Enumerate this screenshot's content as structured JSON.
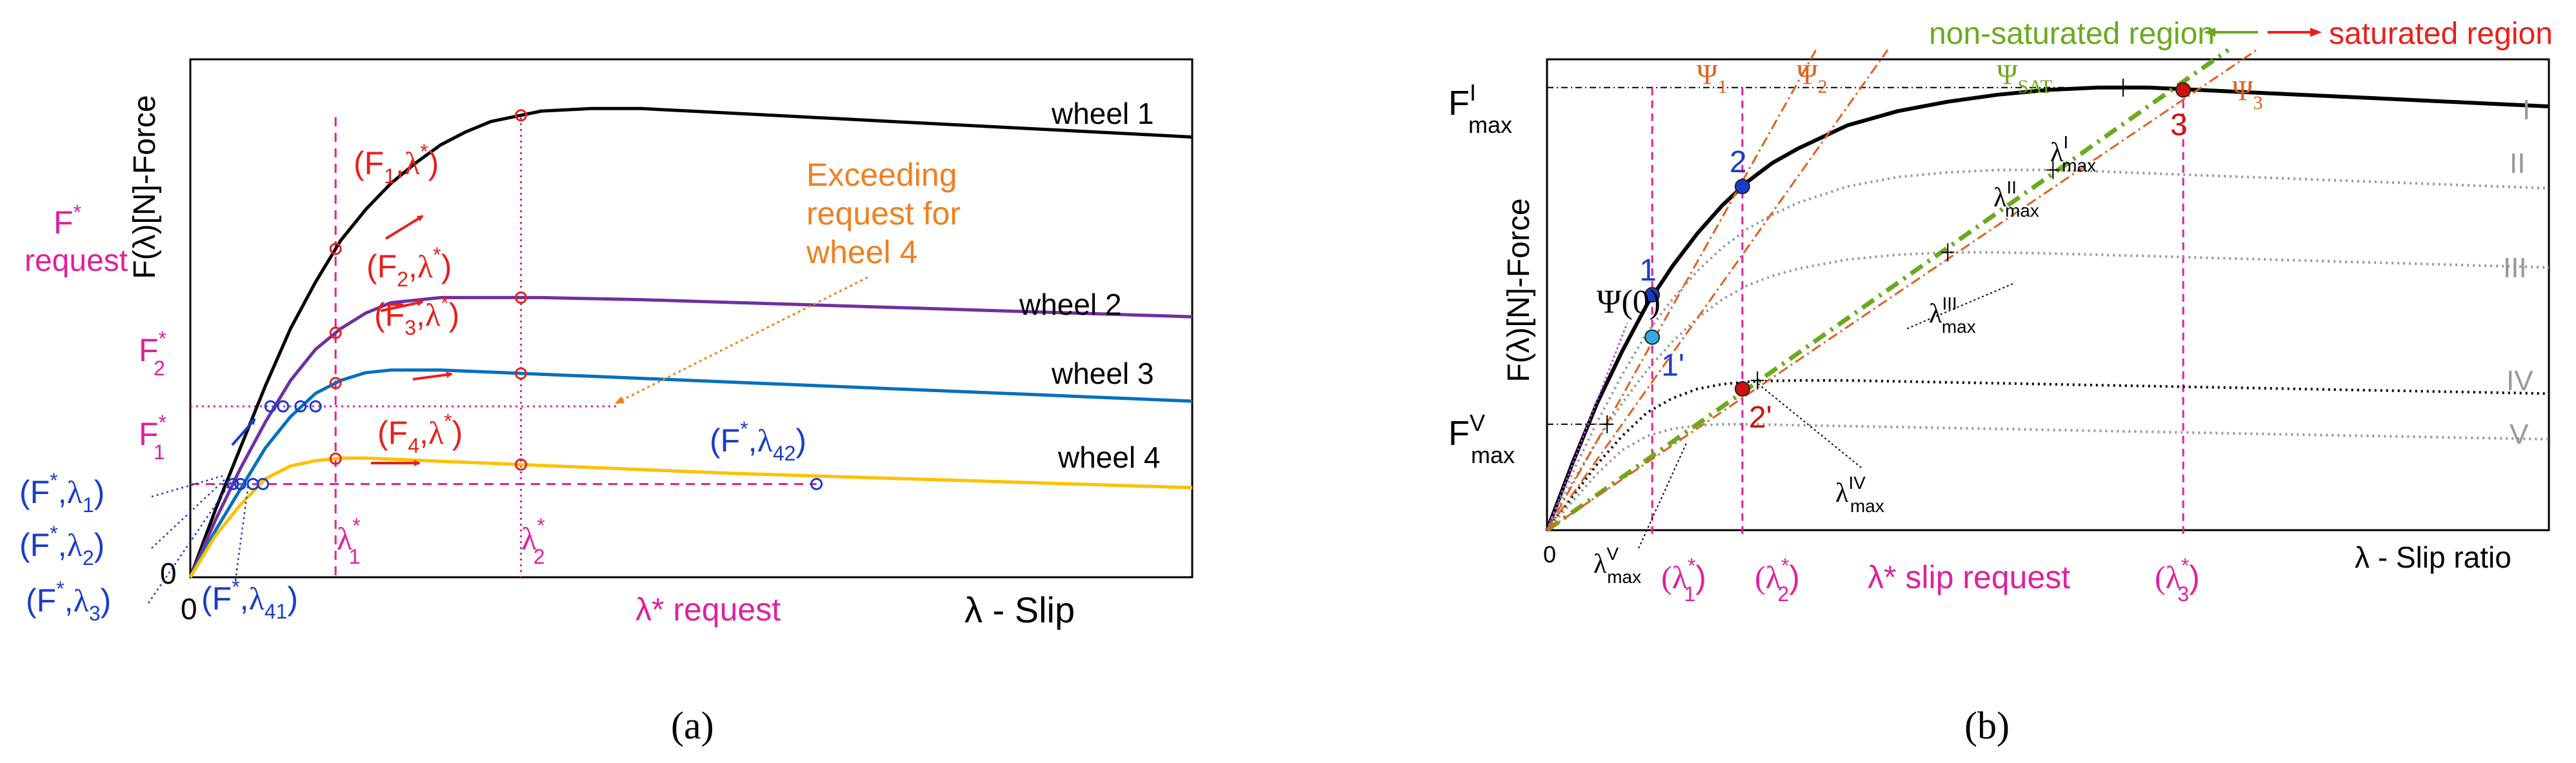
{
  "panel_labels": [
    "(a)",
    "(b)"
  ],
  "chart_data": [
    {
      "type": "line",
      "panel": "(a)",
      "xlabel": "λ - Slip",
      "ylabel": "F(λ)[N]-Force",
      "xlim": [
        0,
        0.2
      ],
      "ylim": [
        0,
        1.0
      ],
      "x": [
        0,
        0.005,
        0.01,
        0.015,
        0.02,
        0.025,
        0.03,
        0.035,
        0.04,
        0.045,
        0.05,
        0.055,
        0.06,
        0.07,
        0.08,
        0.09,
        0.1,
        0.11,
        0.12,
        0.13,
        0.14,
        0.15,
        0.16,
        0.17,
        0.18,
        0.19,
        0.2
      ],
      "series": [
        {
          "name": "wheel 1",
          "color": "#000000",
          "values": [
            0,
            0.13,
            0.25,
            0.37,
            0.48,
            0.57,
            0.65,
            0.71,
            0.76,
            0.8,
            0.835,
            0.86,
            0.88,
            0.9,
            0.905,
            0.905,
            0.9,
            0.895,
            0.89,
            0.885,
            0.88,
            0.875,
            0.87,
            0.865,
            0.86,
            0.855,
            0.85
          ]
        },
        {
          "name": "wheel 2",
          "color": "#7030a0",
          "values": [
            0,
            0.11,
            0.21,
            0.3,
            0.38,
            0.44,
            0.48,
            0.51,
            0.53,
            0.535,
            0.54,
            0.54,
            0.54,
            0.54,
            0.538,
            0.536,
            0.533,
            0.53,
            0.527,
            0.524,
            0.521,
            0.518,
            0.515,
            0.512,
            0.509,
            0.506,
            0.503
          ]
        },
        {
          "name": "wheel 3",
          "color": "#0070c0",
          "values": [
            0,
            0.09,
            0.17,
            0.25,
            0.31,
            0.355,
            0.38,
            0.395,
            0.4,
            0.4,
            0.4,
            0.398,
            0.396,
            0.392,
            0.388,
            0.384,
            0.38,
            0.376,
            0.372,
            0.368,
            0.364,
            0.36,
            0.356,
            0.352,
            0.348,
            0.344,
            0.34
          ]
        },
        {
          "name": "wheel 4",
          "color": "#ffc000",
          "values": [
            0,
            0.08,
            0.14,
            0.19,
            0.215,
            0.225,
            0.23,
            0.23,
            0.228,
            0.226,
            0.224,
            0.222,
            0.22,
            0.216,
            0.212,
            0.208,
            0.204,
            0.2,
            0.197,
            0.194,
            0.191,
            0.188,
            0.185,
            0.182,
            0.179,
            0.176,
            0.173
          ]
        }
      ],
      "reference_lines": {
        "F1_star": 0.18,
        "F2_star": 0.33,
        "lambda1_star": 0.029,
        "lambda2_star": 0.066
      },
      "annotations": {
        "f_star_request": [
          "F",
          "*",
          "request"
        ],
        "f1_star": [
          "F",
          "*",
          "1"
        ],
        "f2_star": [
          "F",
          "*",
          "2"
        ],
        "lambda1_star": [
          "λ",
          "*",
          "1"
        ],
        "lambda2_star": [
          "λ",
          "*",
          "2"
        ],
        "lambda_star_request": "λ* request",
        "zero_y": "0",
        "zero_x": "0",
        "exceeding": [
          "Exceeding",
          "request for",
          "wheel 4"
        ],
        "pairs_red": [
          {
            "label": "F",
            "sub": "1",
            "lam": "λ",
            "sup": "*"
          },
          {
            "label": "F",
            "sub": "2",
            "lam": "λ",
            "sup": "*"
          },
          {
            "label": "F",
            "sub": "3",
            "lam": "λ",
            "sup": "*"
          },
          {
            "label": "F",
            "sub": "4",
            "lam": "λ",
            "sup": "*"
          }
        ],
        "pairs_blue": [
          {
            "sub": "1",
            "text": "(F*,λ1)"
          },
          {
            "sub": "2",
            "text": "(F*,λ2)"
          },
          {
            "sub": "3",
            "text": "(F*,λ3)"
          },
          {
            "sub": "41",
            "text": "(F*,λ41)"
          },
          {
            "sub": "42",
            "text": "(F*,λ42)"
          }
        ]
      }
    },
    {
      "type": "line",
      "panel": "(b)",
      "xlabel": "λ - Slip ratio",
      "ylabel": "F(λ)[N]-Force",
      "xlim": [
        0,
        0.2
      ],
      "ylim": [
        0,
        1.0
      ],
      "x": [
        0,
        0.005,
        0.01,
        0.015,
        0.02,
        0.025,
        0.03,
        0.035,
        0.04,
        0.045,
        0.05,
        0.06,
        0.07,
        0.08,
        0.09,
        0.1,
        0.11,
        0.12,
        0.13,
        0.14,
        0.15,
        0.16,
        0.17,
        0.18,
        0.19,
        0.2
      ],
      "series": [
        {
          "name": "I",
          "color": "#000000",
          "style": "solid",
          "values": [
            0,
            0.14,
            0.27,
            0.38,
            0.48,
            0.56,
            0.63,
            0.69,
            0.74,
            0.78,
            0.81,
            0.86,
            0.89,
            0.91,
            0.925,
            0.935,
            0.94,
            0.94,
            0.935,
            0.93,
            0.925,
            0.92,
            0.915,
            0.91,
            0.905,
            0.9
          ]
        },
        {
          "name": "II",
          "color": "#999999",
          "style": "dotted",
          "values": [
            0,
            0.12,
            0.23,
            0.33,
            0.42,
            0.49,
            0.55,
            0.6,
            0.64,
            0.67,
            0.695,
            0.73,
            0.75,
            0.76,
            0.765,
            0.765,
            0.762,
            0.758,
            0.754,
            0.75,
            0.746,
            0.742,
            0.738,
            0.734,
            0.73,
            0.726
          ]
        },
        {
          "name": "III",
          "color": "#999999",
          "style": "dotted",
          "values": [
            0,
            0.1,
            0.19,
            0.27,
            0.34,
            0.4,
            0.45,
            0.49,
            0.52,
            0.54,
            0.555,
            0.575,
            0.585,
            0.59,
            0.59,
            0.588,
            0.585,
            0.582,
            0.579,
            0.576,
            0.573,
            0.57,
            0.567,
            0.564,
            0.561,
            0.558
          ]
        },
        {
          "name": "IV",
          "color": "#000000",
          "style": "dotted",
          "values": [
            0,
            0.07,
            0.14,
            0.2,
            0.25,
            0.28,
            0.3,
            0.31,
            0.315,
            0.317,
            0.318,
            0.318,
            0.316,
            0.314,
            0.312,
            0.31,
            0.308,
            0.306,
            0.304,
            0.302,
            0.3,
            0.298,
            0.296,
            0.294,
            0.292,
            0.29
          ]
        },
        {
          "name": "V",
          "color": "#999999",
          "style": "dotted",
          "values": [
            0,
            0.06,
            0.12,
            0.17,
            0.2,
            0.215,
            0.222,
            0.225,
            0.225,
            0.224,
            0.223,
            0.221,
            0.219,
            0.217,
            0.215,
            0.213,
            0.211,
            0.209,
            0.207,
            0.205,
            0.203,
            0.201,
            0.199,
            0.197,
            0.195,
            0.193
          ]
        }
      ],
      "psi_lines": [
        {
          "name": "Ψ1",
          "slope": 19.0,
          "color": "#e0601c"
        },
        {
          "name": "Ψ2",
          "slope": 15.0,
          "color": "#e0601c"
        },
        {
          "name": "ΨSAT",
          "slope": 7.5,
          "color": "#6aaa1e"
        },
        {
          "name": "Ψ3",
          "slope": 7.2,
          "color": "#e0601c"
        }
      ],
      "points": [
        {
          "label": "1",
          "x": 0.021,
          "y": 0.5,
          "color": "#1a3cc8"
        },
        {
          "label": "1'",
          "x": 0.021,
          "y": 0.41,
          "color": "#35a8e0"
        },
        {
          "label": "2",
          "x": 0.039,
          "y": 0.73,
          "color": "#1a3cc8"
        },
        {
          "label": "2'",
          "x": 0.039,
          "y": 0.3,
          "color": "#d01010"
        },
        {
          "label": "3",
          "x": 0.127,
          "y": 0.935,
          "color": "#d01010"
        }
      ],
      "annotations": {
        "fmax_I": [
          "F",
          "I",
          "max"
        ],
        "fmax_V": [
          "F",
          "V",
          "max"
        ],
        "psi0": "Ψ(0)",
        "non_saturated": "non-saturated region",
        "saturated": "saturated region",
        "psi1": [
          "Ψ",
          "1"
        ],
        "psi2": [
          "Ψ",
          "2"
        ],
        "psi_sat": [
          "Ψ",
          "SAT"
        ],
        "psi3": [
          "Ψ",
          "3"
        ],
        "lmax_I": [
          "λ",
          "I",
          "max"
        ],
        "lmax_II": [
          "λ",
          "II",
          "max"
        ],
        "lmax_III": [
          "λ",
          "III",
          "max"
        ],
        "lmax_IV": [
          "λ",
          "IV",
          "max"
        ],
        "lmax_V": [
          "λ",
          "V",
          "max"
        ],
        "lam1": [
          "(λ",
          "*",
          "1",
          ")"
        ],
        "lam2": [
          "(λ",
          "*",
          "2",
          ")"
        ],
        "lam3": [
          "(λ",
          "*",
          "3",
          ")"
        ],
        "slip_request": "λ* slip request",
        "zero": "0",
        "roman": [
          "I",
          "II",
          "III",
          "IV",
          "V"
        ]
      }
    }
  ]
}
